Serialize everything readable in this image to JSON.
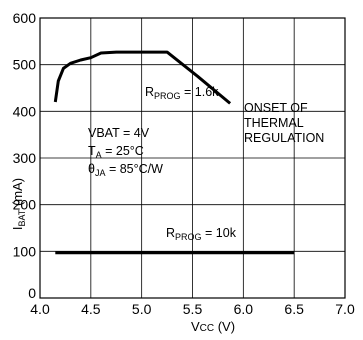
{
  "chart_data": {
    "type": "line",
    "xlabel_main": "V",
    "xlabel_sub": "CC",
    "xlabel_unit": " (V)",
    "ylabel_main": "I",
    "ylabel_sub": "BAT",
    "ylabel_unit": " (mA)",
    "xlim": [
      4.0,
      7.0
    ],
    "ylim": [
      0,
      600
    ],
    "x_ticks": [
      "4.0",
      "4.5",
      "5.0",
      "5.5",
      "6.0",
      "6.5",
      "7.0"
    ],
    "y_ticks": [
      "0",
      "100",
      "200",
      "300",
      "400",
      "500",
      "600"
    ],
    "grid": true,
    "series": [
      {
        "x": [
          4.15,
          4.18,
          4.23,
          4.3,
          4.4,
          4.5,
          4.6,
          4.75,
          5.0,
          5.25,
          5.55,
          5.87
        ],
        "y": [
          420,
          465,
          492,
          503,
          510,
          515,
          525,
          527,
          527,
          527,
          475,
          417
        ],
        "label_main": "R",
        "label_sub": "PROG",
        "label_value": " = 1.6k"
      },
      {
        "x": [
          4.15,
          6.5
        ],
        "y": [
          97,
          97
        ],
        "label_main": "R",
        "label_sub": "PROG",
        "label_value": " = 10k"
      }
    ],
    "annotations": {
      "onset_lines": [
        "ONSET OF",
        "THERMAL",
        "REGULATION"
      ],
      "vbat": "VBAT = 4V",
      "ta_main": "T",
      "ta_sub": "A",
      "ta_value": " = 25°C",
      "theta_main": "θ",
      "theta_sub": "JA",
      "theta_value": " = 85°C/W"
    }
  }
}
